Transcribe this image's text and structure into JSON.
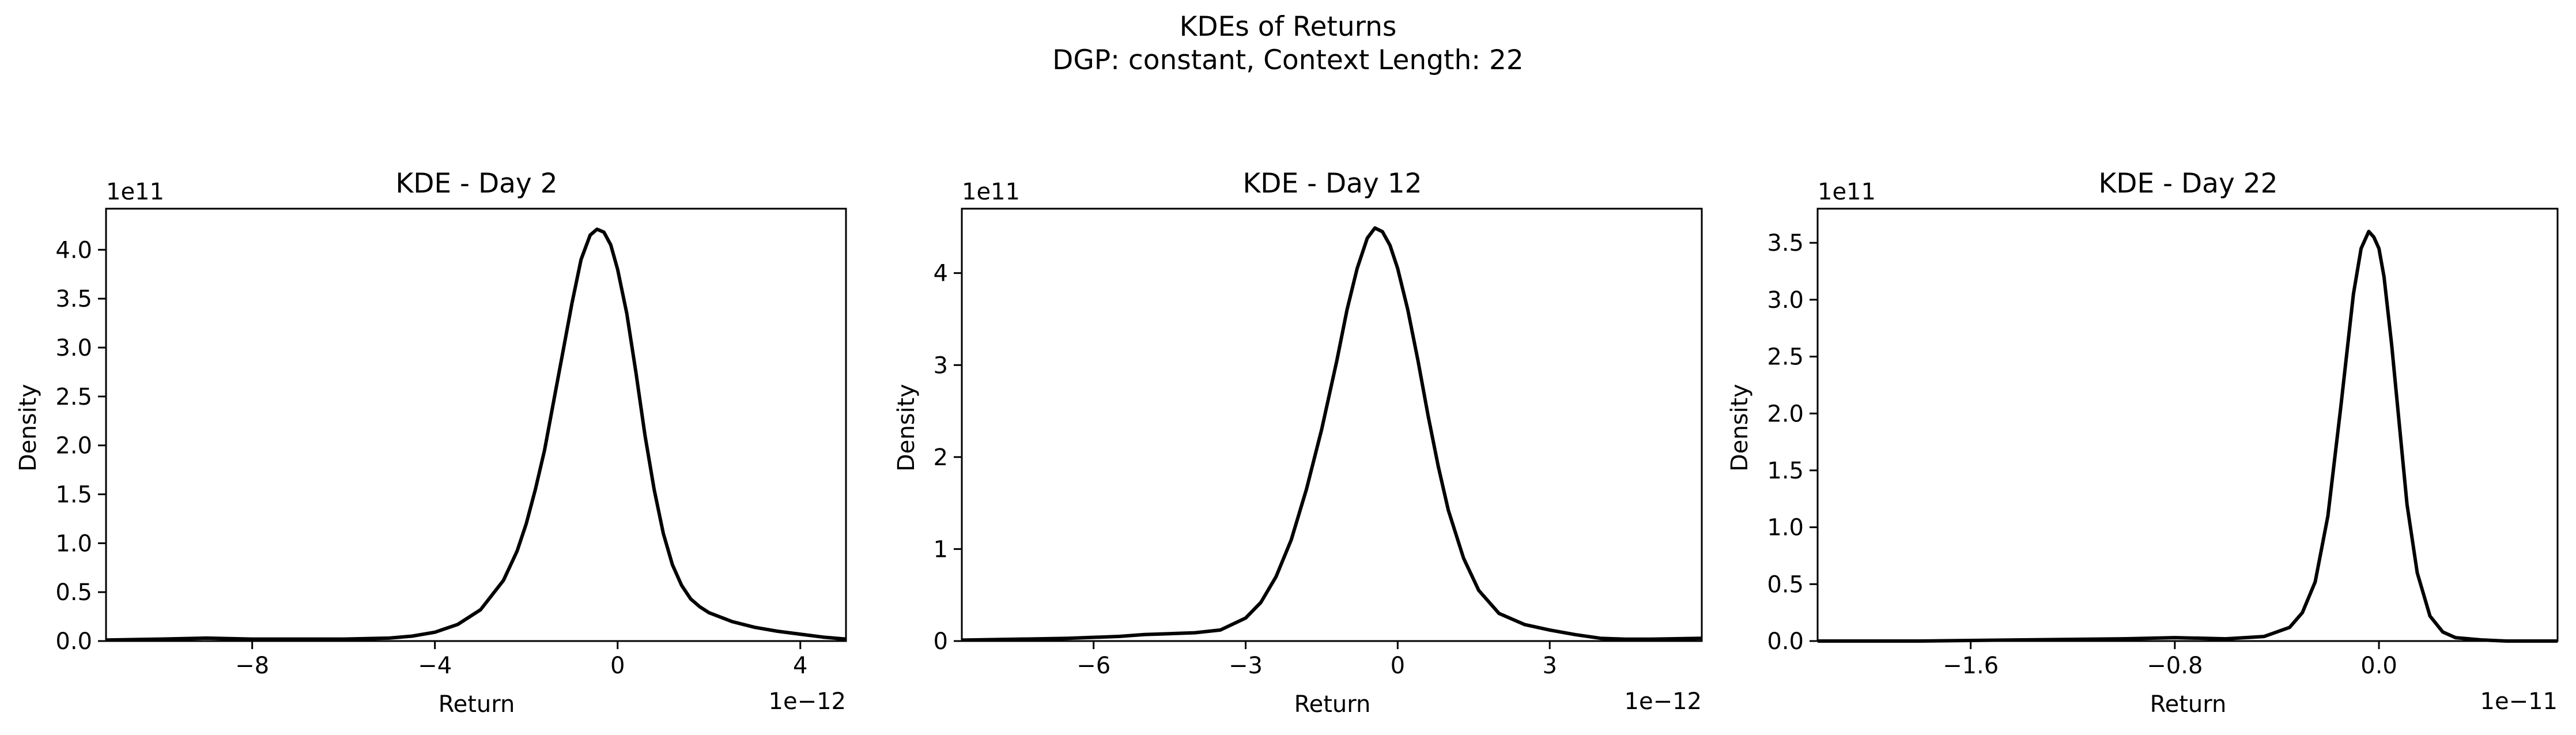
{
  "figure": {
    "title_line1": "KDEs of Returns",
    "title_line2": "DGP: constant, Context Length: 22"
  },
  "colors": {
    "line": "#000000",
    "background": "#ffffff"
  },
  "chart_data": [
    {
      "type": "line",
      "title": "KDE - Day 2",
      "xlabel": "Return",
      "ylabel": "Density",
      "x_offset_text": "1e−12",
      "y_offset_text": "1e11",
      "x_scale": 1e-12,
      "y_scale": 100000000000.0,
      "xlim": [
        -11.2,
        5.0
      ],
      "ylim": [
        0,
        4.42
      ],
      "xticks": [
        {
          "value": -8,
          "label": "−8"
        },
        {
          "value": -4,
          "label": "−4"
        },
        {
          "value": 0,
          "label": "0"
        },
        {
          "value": 4,
          "label": "4"
        }
      ],
      "yticks": [
        {
          "value": 0.0,
          "label": "0.0"
        },
        {
          "value": 0.5,
          "label": "0.5"
        },
        {
          "value": 1.0,
          "label": "1.0"
        },
        {
          "value": 1.5,
          "label": "1.5"
        },
        {
          "value": 2.0,
          "label": "2.0"
        },
        {
          "value": 2.5,
          "label": "2.5"
        },
        {
          "value": 3.0,
          "label": "3.0"
        },
        {
          "value": 3.5,
          "label": "3.5"
        },
        {
          "value": 4.0,
          "label": "4.0"
        }
      ],
      "series": [
        {
          "name": "KDE",
          "x": [
            -11.2,
            -10.0,
            -9.0,
            -8.0,
            -7.0,
            -6.0,
            -5.0,
            -4.5,
            -4.0,
            -3.5,
            -3.0,
            -2.5,
            -2.2,
            -2.0,
            -1.8,
            -1.6,
            -1.4,
            -1.2,
            -1.0,
            -0.8,
            -0.6,
            -0.45,
            -0.3,
            -0.15,
            0.0,
            0.2,
            0.4,
            0.6,
            0.8,
            1.0,
            1.2,
            1.4,
            1.6,
            1.8,
            2.0,
            2.5,
            3.0,
            3.5,
            4.0,
            4.5,
            5.0
          ],
          "y": [
            0.01,
            0.02,
            0.03,
            0.02,
            0.02,
            0.02,
            0.03,
            0.05,
            0.09,
            0.17,
            0.32,
            0.62,
            0.92,
            1.2,
            1.55,
            1.95,
            2.45,
            2.95,
            3.45,
            3.9,
            4.15,
            4.21,
            4.18,
            4.05,
            3.8,
            3.35,
            2.75,
            2.1,
            1.55,
            1.1,
            0.78,
            0.57,
            0.43,
            0.35,
            0.29,
            0.2,
            0.14,
            0.1,
            0.07,
            0.04,
            0.02
          ]
        }
      ]
    },
    {
      "type": "line",
      "title": "KDE - Day 12",
      "xlabel": "Return",
      "ylabel": "Density",
      "x_offset_text": "1e−12",
      "y_offset_text": "1e11",
      "x_scale": 1e-12,
      "y_scale": 100000000000.0,
      "xlim": [
        -8.6,
        6.0
      ],
      "ylim": [
        0,
        4.7
      ],
      "xticks": [
        {
          "value": -6,
          "label": "−6"
        },
        {
          "value": -3,
          "label": "−3"
        },
        {
          "value": 0,
          "label": "0"
        },
        {
          "value": 3,
          "label": "3"
        }
      ],
      "yticks": [
        {
          "value": 0,
          "label": "0"
        },
        {
          "value": 1,
          "label": "1"
        },
        {
          "value": 2,
          "label": "2"
        },
        {
          "value": 3,
          "label": "3"
        },
        {
          "value": 4,
          "label": "4"
        }
      ],
      "series": [
        {
          "name": "KDE",
          "x": [
            -8.6,
            -7.5,
            -6.5,
            -5.5,
            -5.0,
            -4.5,
            -4.0,
            -3.5,
            -3.0,
            -2.7,
            -2.4,
            -2.1,
            -1.8,
            -1.5,
            -1.2,
            -1.0,
            -0.8,
            -0.6,
            -0.45,
            -0.3,
            -0.15,
            0.0,
            0.2,
            0.4,
            0.6,
            0.8,
            1.0,
            1.3,
            1.6,
            2.0,
            2.5,
            3.0,
            3.5,
            4.0,
            4.5,
            5.0,
            6.0
          ],
          "y": [
            0.01,
            0.02,
            0.03,
            0.05,
            0.07,
            0.08,
            0.09,
            0.12,
            0.25,
            0.42,
            0.7,
            1.1,
            1.65,
            2.3,
            3.05,
            3.6,
            4.05,
            4.38,
            4.49,
            4.45,
            4.3,
            4.05,
            3.6,
            3.05,
            2.45,
            1.9,
            1.42,
            0.9,
            0.55,
            0.3,
            0.18,
            0.12,
            0.07,
            0.03,
            0.02,
            0.02,
            0.03
          ]
        }
      ]
    },
    {
      "type": "line",
      "title": "KDE - Day 22",
      "xlabel": "Return",
      "ylabel": "Density",
      "x_offset_text": "1e−11",
      "y_offset_text": "1e11",
      "x_scale": 1e-11,
      "y_scale": 100000000000.0,
      "xlim": [
        -2.2,
        0.7
      ],
      "ylim": [
        0,
        3.8
      ],
      "xticks": [
        {
          "value": -1.6,
          "label": "−1.6"
        },
        {
          "value": -0.8,
          "label": "−0.8"
        },
        {
          "value": 0.0,
          "label": "0.0"
        }
      ],
      "yticks": [
        {
          "value": 0.0,
          "label": "0.0"
        },
        {
          "value": 0.5,
          "label": "0.5"
        },
        {
          "value": 1.0,
          "label": "1.0"
        },
        {
          "value": 1.5,
          "label": "1.5"
        },
        {
          "value": 2.0,
          "label": "2.0"
        },
        {
          "value": 2.5,
          "label": "2.5"
        },
        {
          "value": 3.0,
          "label": "3.0"
        },
        {
          "value": 3.5,
          "label": "3.5"
        }
      ],
      "series": [
        {
          "name": "KDE",
          "x": [
            -2.2,
            -1.8,
            -1.4,
            -1.0,
            -0.8,
            -0.6,
            -0.45,
            -0.35,
            -0.3,
            -0.25,
            -0.2,
            -0.15,
            -0.1,
            -0.07,
            -0.04,
            -0.02,
            0.0,
            0.02,
            0.05,
            0.08,
            0.11,
            0.15,
            0.2,
            0.25,
            0.3,
            0.4,
            0.5,
            0.7
          ],
          "y": [
            0.0,
            0.0,
            0.01,
            0.02,
            0.03,
            0.02,
            0.04,
            0.12,
            0.25,
            0.52,
            1.1,
            2.05,
            3.05,
            3.45,
            3.6,
            3.55,
            3.45,
            3.2,
            2.6,
            1.9,
            1.2,
            0.6,
            0.22,
            0.08,
            0.03,
            0.01,
            0.0,
            0.0
          ]
        }
      ]
    }
  ]
}
